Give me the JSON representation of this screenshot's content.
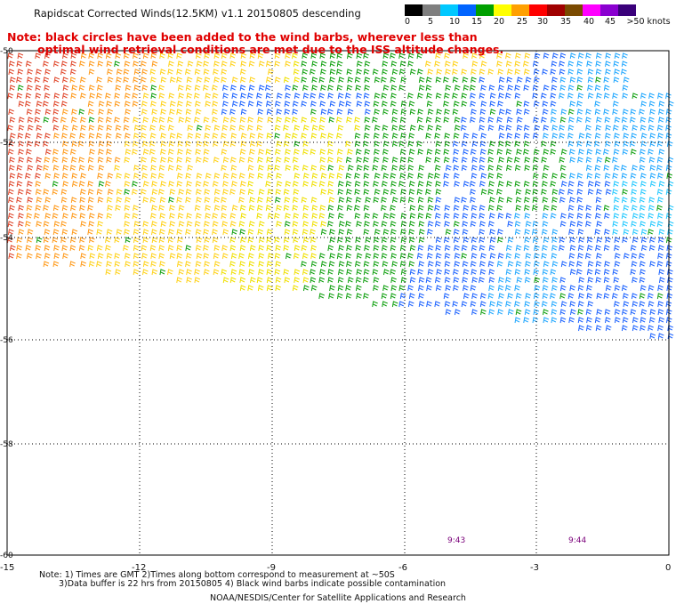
{
  "header": {
    "title": "Rapidscat Corrected Winds(12.5KM) v1.1 20150805 descending",
    "note_line1": "Note: black circles have been added to the wind barbs, wherever less than",
    "note_line2": "optimal wind retrieval conditions are met due to the ISS altitude changes."
  },
  "legend": {
    "labels": [
      "0",
      "5",
      "10",
      "15",
      "20",
      "25",
      "30",
      "35",
      "40",
      "45",
      ">50 knots"
    ],
    "colors": [
      "#000000",
      "#7f7f7f",
      "#00c8ff",
      "#0064ff",
      "#00a000",
      "#ffff00",
      "#ffa000",
      "#ff0000",
      "#a00000",
      "#7a4a00",
      "#ff00ff",
      "#8a00d0",
      "#3a007a"
    ]
  },
  "map": {
    "lat_labels": [
      "-50",
      "-52",
      "-54",
      "-56",
      "-58",
      "-60"
    ],
    "lon_labels": [
      "-15",
      "-12",
      "-9",
      "-6",
      "-3",
      "0"
    ],
    "lat_range": [
      -60,
      -50
    ],
    "lon_range": [
      -15,
      0
    ],
    "time_labels": [
      "9:43",
      "9:44"
    ]
  },
  "footer": {
    "line1": "Note: 1) Times are GMT 2)Times along bottom correspond to measurement at ~50S",
    "line2": "3)Data buffer is 22 hrs from 20150805 4) Black wind barbs indicate possible contamination",
    "credit": "NOAA/NESDIS/Center for Satellite Applications and Research"
  }
}
